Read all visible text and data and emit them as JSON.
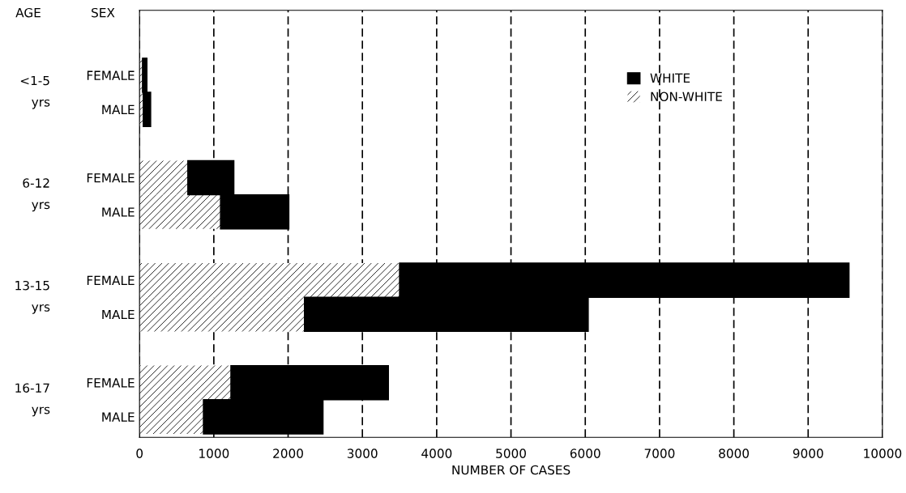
{
  "chart_data": {
    "type": "bar",
    "orientation": "horizontal",
    "stacked": true,
    "categories": [
      "FEMALE",
      "MALE",
      null,
      "FEMALE",
      "MALE",
      null,
      "FEMALE",
      "MALE",
      null,
      "FEMALE",
      "MALE"
    ],
    "series": [
      {
        "name": "NON-WHITE",
        "color": "#ffffff",
        "values": [
          40,
          50,
          null,
          650,
          1090,
          null,
          3500,
          2220,
          null,
          1230,
          860
        ]
      },
      {
        "name": "WHITE",
        "color": "#000000",
        "values": [
          60,
          100,
          null,
          620,
          920,
          null,
          6050,
          3820,
          null,
          2120,
          1610
        ]
      }
    ],
    "xlabel": "NUMBER OF CASES",
    "xlim": [
      0,
      10000
    ],
    "xticks": [
      0,
      1000,
      2000,
      3000,
      4000,
      5000,
      6000,
      7000,
      8000,
      9000,
      10000
    ],
    "grid": "x",
    "legend": "top right",
    "annotations": [
      "AGE",
      "SEX",
      "<1-5\nyrs",
      "6-12\nyrs",
      "13-15\nyrs",
      "16-17\nyrs"
    ]
  }
}
